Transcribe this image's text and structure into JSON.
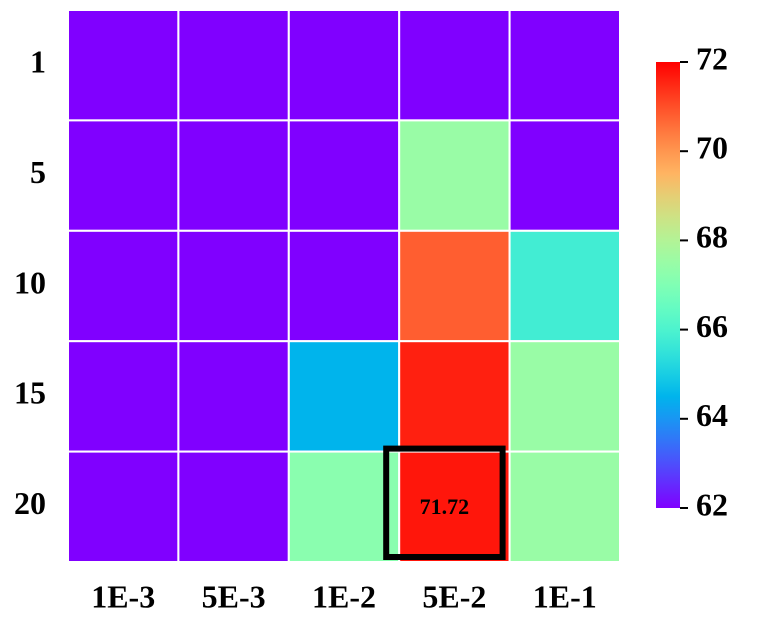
{
  "chart_data": {
    "type": "heatmap",
    "rows": [
      "1",
      "5",
      "10",
      "15",
      "20"
    ],
    "columns": [
      "1E-3",
      "5E-3",
      "1E-2",
      "5E-2",
      "1E-1"
    ],
    "values": [
      [
        62,
        62,
        62,
        62,
        62
      ],
      [
        62,
        62,
        62,
        67.5,
        62
      ],
      [
        62,
        62,
        62,
        70.8,
        65.8
      ],
      [
        62,
        62,
        64.5,
        71.6,
        67.5
      ],
      [
        62,
        62,
        67.2,
        71.72,
        67.5
      ]
    ],
    "colormap": "rainbow",
    "clim": [
      62,
      72
    ],
    "cticks": [
      62,
      64,
      66,
      68,
      70,
      72
    ],
    "highlight": {
      "row": 4,
      "col": 3
    }
  }
}
